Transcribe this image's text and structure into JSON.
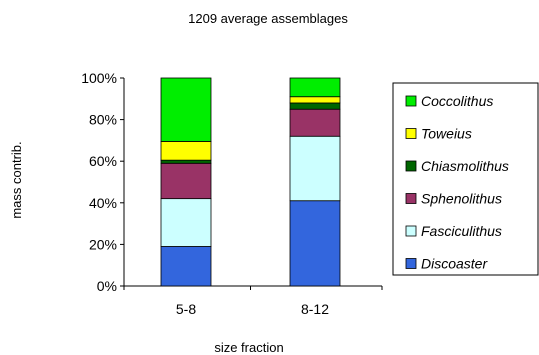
{
  "chart_data": {
    "type": "bar",
    "stacked": true,
    "title": "1209 average assemblages",
    "xlabel": "size fraction",
    "ylabel": "mass contrib.",
    "categories": [
      "5-8",
      "8-12"
    ],
    "ylim": [
      0,
      100
    ],
    "yticks": [
      "0%",
      "20%",
      "40%",
      "60%",
      "80%",
      "100%"
    ],
    "grid": false,
    "legend_position": "right",
    "series": [
      {
        "name": "Discoaster",
        "color": "#3366dd",
        "values": [
          19,
          41
        ]
      },
      {
        "name": "Fasciculithus",
        "color": "#ccffff",
        "values": [
          23,
          31
        ]
      },
      {
        "name": "Sphenolithus",
        "color": "#993366",
        "values": [
          17,
          13
        ]
      },
      {
        "name": "Chiasmolithus",
        "color": "#006600",
        "values": [
          1.5,
          3
        ]
      },
      {
        "name": "Toweius",
        "color": "#ffff00",
        "values": [
          9,
          3
        ]
      },
      {
        "name": "Coccolithus",
        "color": "#00ee00",
        "values": [
          30.5,
          9
        ]
      }
    ],
    "legend_order": [
      "Coccolithus",
      "Toweius",
      "Chiasmolithus",
      "Sphenolithus",
      "Fasciculithus",
      "Discoaster"
    ]
  }
}
